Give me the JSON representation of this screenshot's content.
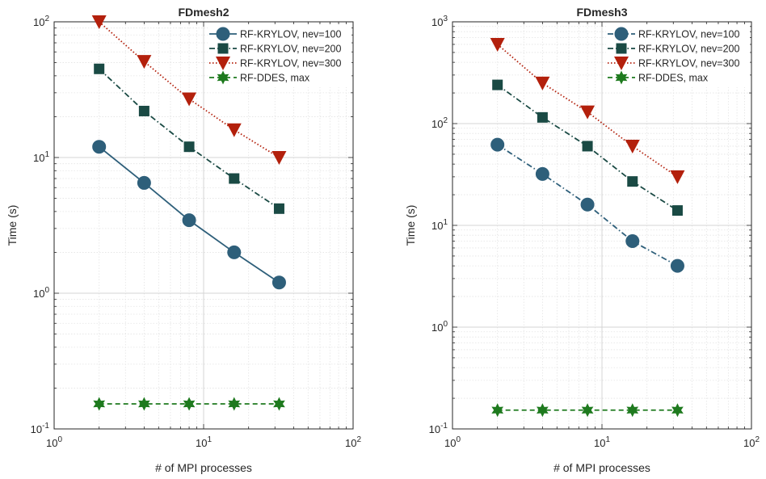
{
  "chart_data": [
    {
      "type": "line",
      "title": "FDmesh2",
      "xlabel": "# of MPI processes",
      "ylabel": "Time (s)",
      "xscale": "log",
      "yscale": "log",
      "xlim": [
        1,
        100
      ],
      "ylim": [
        0.1,
        100
      ],
      "xticks": [
        {
          "base": "10",
          "exp": "0"
        },
        {
          "base": "10",
          "exp": "1"
        },
        {
          "base": "10",
          "exp": "2"
        }
      ],
      "yticks": [
        {
          "base": "10",
          "exp": "-1"
        },
        {
          "base": "10",
          "exp": "0"
        },
        {
          "base": "10",
          "exp": "1"
        },
        {
          "base": "10",
          "exp": "2"
        }
      ],
      "grid": true,
      "legend_position": "top-right",
      "x": [
        2,
        4,
        8,
        16,
        32
      ],
      "series": [
        {
          "name": "RF-KRYLOV, nev=100",
          "values": [
            12,
            6.5,
            3.45,
            2.0,
            1.2
          ],
          "color": "#2e5f7a",
          "line": "solid",
          "marker": "circle"
        },
        {
          "name": "RF-KRYLOV, nev=200",
          "values": [
            45,
            22,
            12,
            7.0,
            4.2
          ],
          "color": "#1a4a44",
          "line": "dashdot",
          "marker": "square"
        },
        {
          "name": "RF-KRYLOV, nev=300",
          "values": [
            100,
            51,
            27,
            16,
            10
          ],
          "color": "#b3200c",
          "line": "dotted",
          "marker": "triangle-down"
        },
        {
          "name": "RF-DDES, max",
          "values": [
            0.153,
            0.153,
            0.153,
            0.153,
            0.153
          ],
          "color": "#1e7a1e",
          "line": "dashed",
          "marker": "star"
        }
      ]
    },
    {
      "type": "line",
      "title": "FDmesh3",
      "xlabel": "# of MPI processes",
      "ylabel": "Time (s)",
      "xscale": "log",
      "yscale": "log",
      "xlim": [
        1,
        100
      ],
      "ylim": [
        0.1,
        1000
      ],
      "xticks": [
        {
          "base": "10",
          "exp": "0"
        },
        {
          "base": "10",
          "exp": "1"
        },
        {
          "base": "10",
          "exp": "2"
        }
      ],
      "yticks": [
        {
          "base": "10",
          "exp": "-1"
        },
        {
          "base": "10",
          "exp": "0"
        },
        {
          "base": "10",
          "exp": "1"
        },
        {
          "base": "10",
          "exp": "2"
        },
        {
          "base": "10",
          "exp": "3"
        }
      ],
      "grid": true,
      "legend_position": "top-right",
      "x": [
        2,
        4,
        8,
        16,
        32
      ],
      "series": [
        {
          "name": "RF-KRYLOV, nev=100",
          "values": [
            62,
            32,
            16,
            7.0,
            4.0
          ],
          "color": "#2e5f7a",
          "line": "dashdot",
          "marker": "circle"
        },
        {
          "name": "RF-KRYLOV, nev=200",
          "values": [
            240,
            115,
            60,
            27,
            14
          ],
          "color": "#1a4a44",
          "line": "dashdot",
          "marker": "square"
        },
        {
          "name": "RF-KRYLOV, nev=300",
          "values": [
            600,
            250,
            130,
            60,
            30
          ],
          "color": "#b3200c",
          "line": "dotted",
          "marker": "triangle-down"
        },
        {
          "name": "RF-DDES, max",
          "values": [
            0.153,
            0.153,
            0.153,
            0.153,
            0.153
          ],
          "color": "#1e7a1e",
          "line": "dashed",
          "marker": "star"
        }
      ]
    }
  ]
}
